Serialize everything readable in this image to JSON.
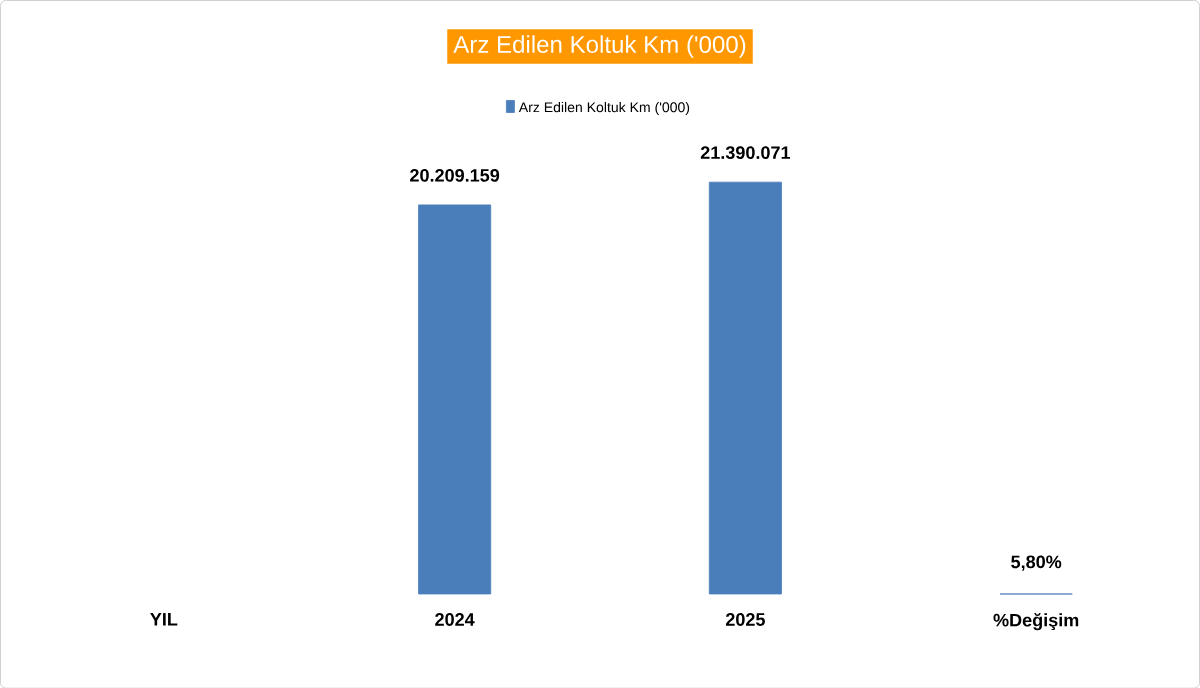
{
  "chart_data": {
    "type": "bar",
    "title": "Arz Edilen Koltuk Km ('000)",
    "categories": [
      "YIL",
      "2024",
      "2025",
      "%Değişim"
    ],
    "series": [
      {
        "name": "Arz Edilen Koltuk Km ('000)",
        "color": "#4a7ebb",
        "values": [
          null,
          20209159,
          21390071,
          5.8
        ],
        "value_labels": [
          null,
          "20.209.159",
          "21.390.071",
          "5,80%"
        ]
      }
    ],
    "legend": "top"
  }
}
